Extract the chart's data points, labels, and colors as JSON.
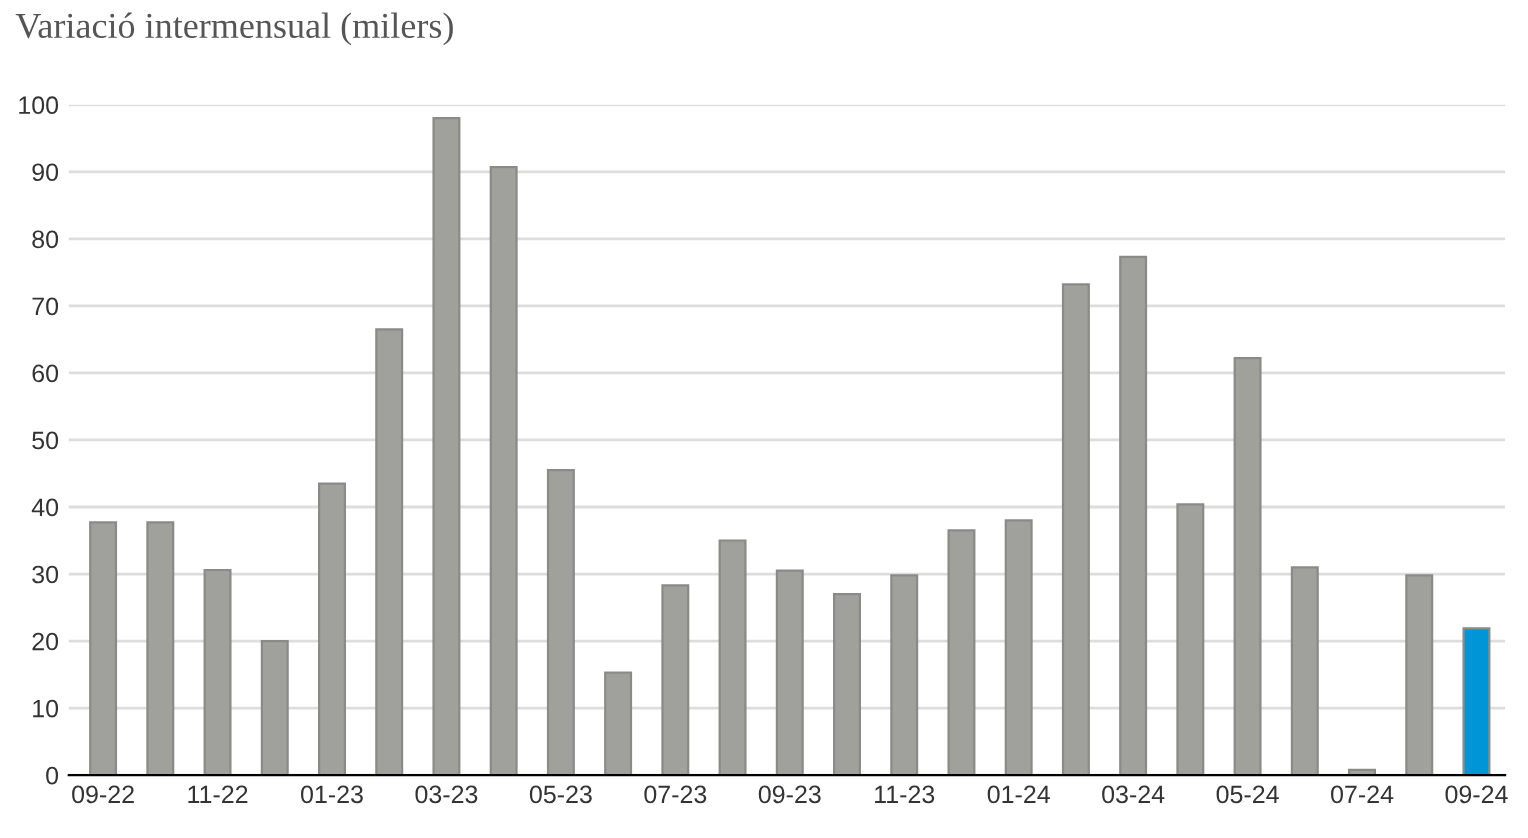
{
  "chart_data": {
    "type": "bar",
    "subtitle": "Variació intermensual (milers)",
    "categories": [
      "09-22",
      null,
      "11-22",
      null,
      "01-23",
      null,
      "03-23",
      null,
      "05-23",
      null,
      "07-23",
      null,
      "09-23",
      null,
      "11-23",
      null,
      "01-24",
      null,
      "03-24",
      null,
      "05-24",
      null,
      "07-24",
      null,
      "09-24"
    ],
    "values": [
      37.7,
      37.7,
      30.6,
      20,
      43.5,
      66.5,
      98,
      90.7,
      45.5,
      15.3,
      28.3,
      35,
      30.5,
      27,
      29.8,
      36.5,
      38,
      73.2,
      77.3,
      40.4,
      62.2,
      31,
      0.8,
      29.8,
      21.9
    ],
    "colors": [
      "#a0a09c",
      "#a0a09c",
      "#a0a09c",
      "#a0a09c",
      "#a0a09c",
      "#a0a09c",
      "#a0a09c",
      "#a0a09c",
      "#a0a09c",
      "#a0a09c",
      "#a0a09c",
      "#a0a09c",
      "#a0a09c",
      "#a0a09c",
      "#a0a09c",
      "#a0a09c",
      "#a0a09c",
      "#a0a09c",
      "#a0a09c",
      "#a0a09c",
      "#a0a09c",
      "#a0a09c",
      "#a0a09c",
      "#a0a09c",
      "#0095d6"
    ],
    "ylim": [
      0,
      100
    ],
    "yticks": [
      0,
      10,
      20,
      30,
      40,
      50,
      60,
      70,
      80,
      90,
      100
    ],
    "grid": "y",
    "legend": false
  }
}
